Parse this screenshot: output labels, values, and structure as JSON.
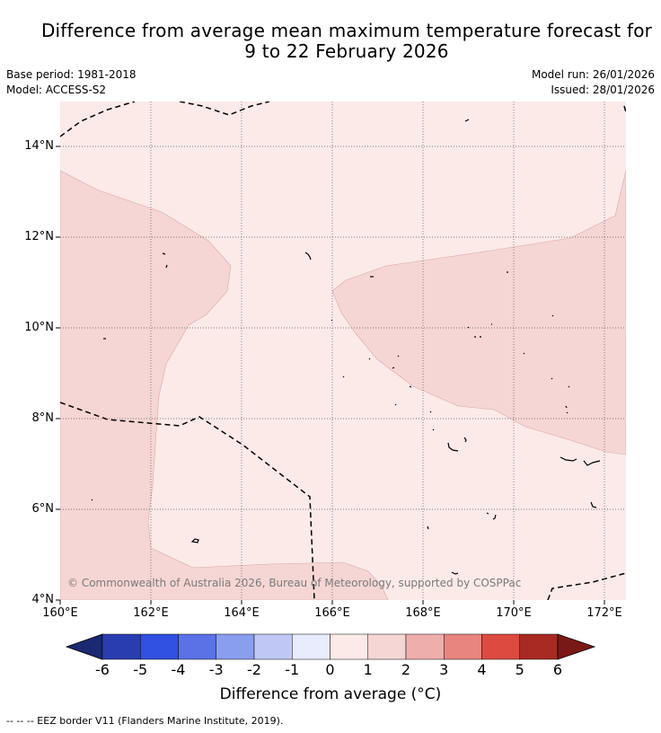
{
  "title": {
    "line1": "Difference from average mean maximum temperature forecast for",
    "line2": "9 to 22 February 2026"
  },
  "meta": {
    "base_period": "Base period: 1981-2018",
    "model": "Model: ACCESS-S2",
    "model_run": "Model run: 26/01/2026",
    "issued": "Issued: 28/01/2026"
  },
  "axes": {
    "lat_labels": [
      "14°N",
      "12°N",
      "10°N",
      "8°N",
      "6°N",
      "4°N"
    ],
    "lon_labels": [
      "160°E",
      "162°E",
      "164°E",
      "166°E",
      "168°E",
      "170°E",
      "172°E"
    ]
  },
  "map": {
    "copyright": "© Commonwealth of Australia 2026, Bureau of Meteorology, supported by COSPPac",
    "anomaly_fill_0_to_1": "#fbeae8",
    "anomaly_fill_1_to_2": "#f5d6d4"
  },
  "colorbar": {
    "title": "Difference from average (°C)",
    "ticks": [
      "-6",
      "-5",
      "-4",
      "-3",
      "-2",
      "-1",
      "0",
      "1",
      "2",
      "3",
      "4",
      "5",
      "6"
    ],
    "colors": [
      "#1b2872",
      "#2a3db0",
      "#3050e0",
      "#5a72e6",
      "#8a9ef0",
      "#bfc8f5",
      "#e8ecfc",
      "#fbeae8",
      "#f5d6d4",
      "#eeaeab",
      "#e8857f",
      "#dc4a40",
      "#a82a22",
      "#7a1818"
    ]
  },
  "legend": {
    "eez": "--  --  -- EEZ border V11 (Flanders Marine Institute, 2019)."
  }
}
